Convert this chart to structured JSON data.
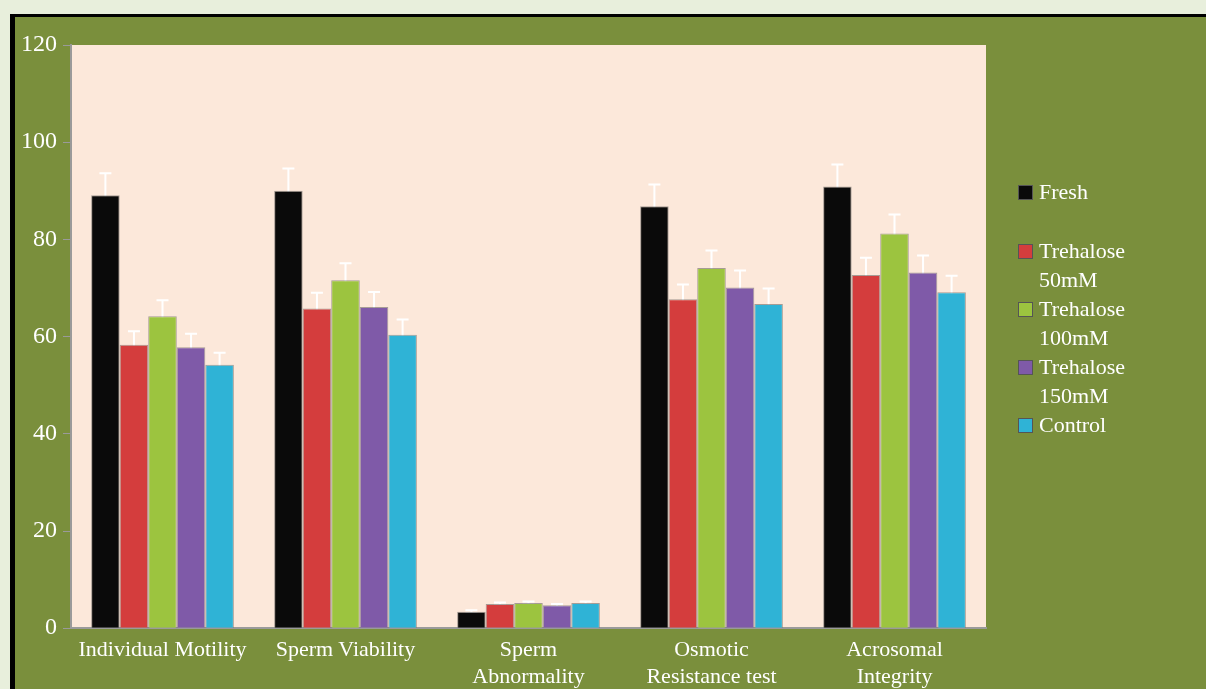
{
  "chart_data": {
    "type": "bar",
    "categories": [
      "Individual Motility",
      "Sperm Viability",
      "Sperm Abnormality",
      "Osmotic Resistance test",
      "Acrosomal Integrity"
    ],
    "series": [
      {
        "name": "Fresh",
        "color": "#0a0a0a",
        "values": [
          89.1,
          90.0,
          3.4,
          86.8,
          90.9
        ],
        "errors": [
          4.5,
          4.6,
          0.3,
          4.5,
          4.5
        ]
      },
      {
        "name": "Trehalose 50mM",
        "color": "#d43d3d",
        "values": [
          58.3,
          65.8,
          5.0,
          67.7,
          72.7
        ],
        "errors": [
          2.8,
          3.2,
          0.3,
          3.0,
          3.5
        ]
      },
      {
        "name": "Trehalose 100mM",
        "color": "#9cc43f",
        "values": [
          64.2,
          71.6,
          5.2,
          74.1,
          81.2
        ],
        "errors": [
          3.3,
          3.5,
          0.3,
          3.6,
          3.9
        ]
      },
      {
        "name": "Trehalose 150mM",
        "color": "#7f5aa8",
        "values": [
          57.8,
          66.1,
          4.7,
          70.1,
          73.2
        ],
        "errors": [
          2.8,
          3.1,
          0.3,
          3.5,
          3.5
        ]
      },
      {
        "name": "Control",
        "color": "#2fb3d6",
        "values": [
          54.2,
          60.4,
          5.2,
          66.7,
          69.1
        ],
        "errors": [
          2.5,
          3.1,
          0.3,
          3.2,
          3.4
        ]
      }
    ],
    "ylim": [
      0,
      120
    ],
    "yticks": [
      0,
      20,
      40,
      60,
      80,
      100,
      120
    ],
    "grid": false,
    "legend": "right"
  }
}
